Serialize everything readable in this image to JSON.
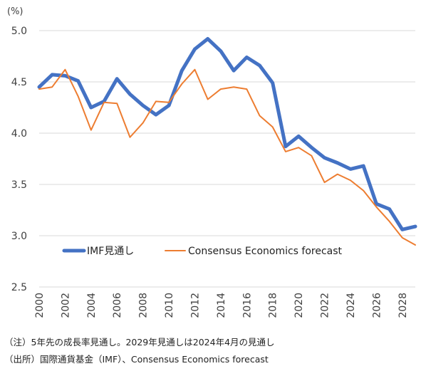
{
  "chart_data": {
    "type": "line",
    "unit_label": "(%)",
    "x": [
      2000,
      2001,
      2002,
      2003,
      2004,
      2005,
      2006,
      2007,
      2008,
      2009,
      2010,
      2011,
      2012,
      2013,
      2014,
      2015,
      2016,
      2017,
      2018,
      2019,
      2020,
      2021,
      2022,
      2023,
      2024,
      2025,
      2026,
      2027,
      2028,
      2029
    ],
    "x_tick_labels": [
      "2000",
      "2002",
      "2004",
      "2006",
      "2008",
      "2010",
      "2012",
      "2014",
      "2016",
      "2018",
      "2020",
      "2022",
      "2024",
      "2026",
      "2028"
    ],
    "y_tick_labels": [
      "2.5",
      "3.0",
      "3.5",
      "4.0",
      "4.5",
      "5.0"
    ],
    "ylim": [
      2.5,
      5.0
    ],
    "grid": true,
    "legend_position": "bottom-left",
    "series": [
      {
        "name": "IMF見通し",
        "color": "#4472C4",
        "values": [
          4.45,
          4.57,
          4.56,
          4.51,
          4.25,
          4.31,
          4.53,
          4.38,
          4.27,
          4.18,
          4.27,
          4.61,
          4.82,
          4.92,
          4.8,
          4.61,
          4.74,
          4.66,
          4.49,
          3.87,
          3.97,
          3.86,
          3.76,
          3.71,
          3.65,
          3.68,
          3.31,
          3.26,
          3.06,
          3.09
        ]
      },
      {
        "name": "Consensus Economics forecast",
        "color": "#ED7D31",
        "values": [
          4.43,
          4.45,
          4.62,
          4.36,
          4.03,
          4.3,
          4.29,
          3.96,
          4.1,
          4.31,
          4.3,
          4.48,
          4.62,
          4.33,
          4.43,
          4.45,
          4.43,
          4.17,
          4.06,
          3.82,
          3.86,
          3.78,
          3.52,
          3.6,
          3.54,
          3.44,
          3.28,
          3.14,
          2.98,
          2.91
        ]
      }
    ]
  },
  "notes": {
    "note1": "（注）5年先の成長率見通し。2029年見通しは2024年4月の見通し",
    "note2": "（出所）国際通貨基金（IMF）、Consensus Economics forecast"
  }
}
